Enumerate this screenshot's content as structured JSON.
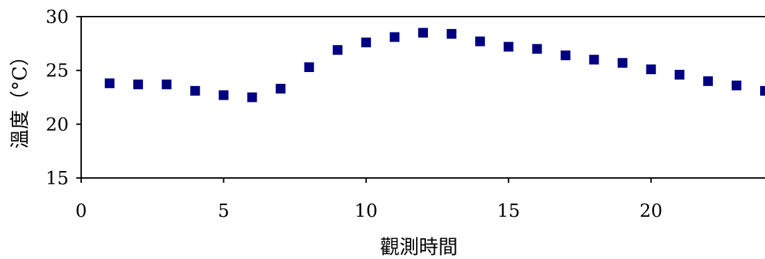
{
  "chart_data": {
    "type": "scatter",
    "title": "",
    "xlabel": "觀測時間",
    "ylabel": "溫度（°C）",
    "xlim": [
      0,
      24
    ],
    "ylim": [
      15,
      30
    ],
    "x_ticks": [
      "0",
      "5",
      "10",
      "15",
      "20"
    ],
    "y_ticks": [
      "30",
      "25",
      "20",
      "15"
    ],
    "x_tick_values": [
      0,
      5,
      10,
      15,
      20
    ],
    "y_tick_values": [
      30,
      25,
      20,
      15
    ],
    "grid": false,
    "legend": "none",
    "marker_color": "#000080",
    "series": [
      {
        "x": [
          1,
          2,
          3,
          4,
          5,
          6,
          7,
          8,
          9,
          10,
          11,
          12,
          13,
          14,
          15,
          16,
          17,
          18,
          19,
          20,
          21,
          22,
          23,
          24
        ],
        "y": [
          23.8,
          23.7,
          23.7,
          23.1,
          22.7,
          22.5,
          23.3,
          25.3,
          26.9,
          27.6,
          28.1,
          28.5,
          28.4,
          27.7,
          27.2,
          27.0,
          26.4,
          26.0,
          25.7,
          25.1,
          24.6,
          24.0,
          23.6,
          23.1
        ]
      }
    ]
  }
}
